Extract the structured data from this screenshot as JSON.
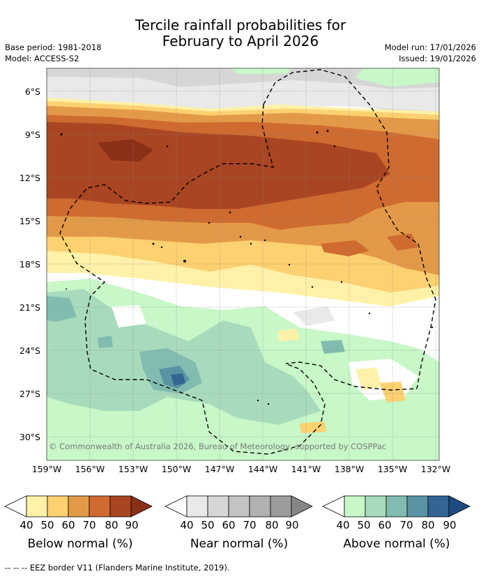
{
  "header": {
    "title_line1": "Tercile rainfall probabilities for",
    "title_line2": "February to April 2026",
    "base_period": "Base period: 1981-2018",
    "model": "Model: ACCESS-S2",
    "model_run": "Model run: 17/01/2026",
    "issued": "Issued: 19/01/2026"
  },
  "axes": {
    "lat_labels": [
      "6°S",
      "9°S",
      "12°S",
      "15°S",
      "18°S",
      "21°S",
      "24°S",
      "27°S",
      "30°S"
    ],
    "lon_labels": [
      "159°W",
      "156°W",
      "153°W",
      "150°W",
      "147°W",
      "144°W",
      "141°W",
      "138°W",
      "135°W",
      "132°W"
    ]
  },
  "map": {
    "copyright": "© Commonwealth of Australia 2026, Bureau of Meteorology, supported by COSPPac"
  },
  "legend": {
    "below": {
      "title": "Below normal (%)",
      "ticks": [
        "40",
        "50",
        "60",
        "70",
        "80",
        "90"
      ],
      "colors": [
        "#fff1a8",
        "#fdd070",
        "#e39a48",
        "#cf6a30",
        "#a94522",
        "#8a2f18"
      ]
    },
    "near": {
      "title": "Near normal (%)",
      "ticks": [
        "40",
        "50",
        "60",
        "70",
        "80",
        "90"
      ],
      "colors": [
        "#e9e9e9",
        "#d6d6d6",
        "#c3c3c3",
        "#b1b1b1",
        "#9c9c9c",
        "#868686"
      ]
    },
    "above": {
      "title": "Above normal (%)",
      "ticks": [
        "40",
        "50",
        "60",
        "70",
        "80",
        "90"
      ],
      "colors": [
        "#c8f7c8",
        "#a8dbbc",
        "#82bcb0",
        "#5a94a4",
        "#336494",
        "#1d4a80"
      ]
    }
  },
  "footnote": "-- -- -- EEZ border V11 (Flanders Marine Institute, 2019)."
}
